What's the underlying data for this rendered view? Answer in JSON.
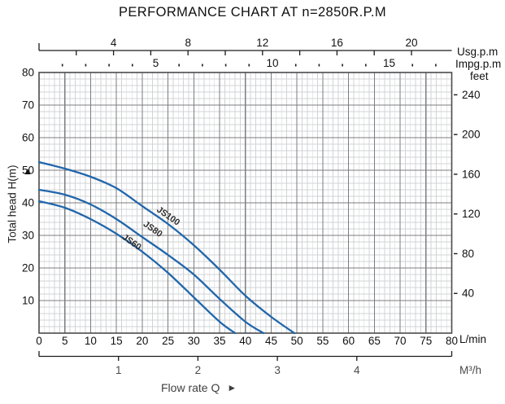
{
  "title": "PERFORMANCE CHART AT n=2850R.P.M",
  "chart_data": {
    "type": "line",
    "title": "PERFORMANCE CHART AT n=2850R.P.M",
    "xlabel": "Flow rate Q",
    "ylabel": "Total head H(m)",
    "x_unit_primary": "L/min",
    "x_units_all": [
      "Usg.p.m",
      "Impg.p.m",
      "L/min",
      "M³/h"
    ],
    "y_units_all": [
      "m",
      "feet"
    ],
    "xlim": [
      0,
      80
    ],
    "ylim": [
      0,
      80
    ],
    "grid": "minor 1 L/min x 2 m, major 5 L/min x 10 m",
    "legend_position": "labels along curves",
    "series": [
      {
        "name": "JS100",
        "x_lmin": [
          0,
          5,
          10,
          15,
          20,
          25,
          30,
          35,
          40,
          45,
          49.5
        ],
        "y_m": [
          52.5,
          50.5,
          48,
          44.5,
          39,
          33.5,
          27,
          19.5,
          11.5,
          5,
          0
        ]
      },
      {
        "name": "JS80",
        "x_lmin": [
          0,
          5,
          10,
          15,
          20,
          25,
          30,
          35,
          40,
          43.5
        ],
        "y_m": [
          44,
          42.5,
          39.5,
          35,
          29.5,
          24,
          18,
          10.5,
          3.5,
          0
        ]
      },
      {
        "name": "JS60",
        "x_lmin": [
          0,
          5,
          10,
          15,
          20,
          25,
          30,
          35,
          38
        ],
        "y_m": [
          40.5,
          38.5,
          35,
          30.5,
          25,
          18.5,
          11,
          3.5,
          0
        ]
      }
    ]
  },
  "axes": {
    "top_usgpm": {
      "unit": "Usg.p.m",
      "tick_labels": [
        4,
        8,
        12,
        16,
        20
      ],
      "minor_ticks": [
        2,
        4,
        6,
        8,
        10,
        12,
        14,
        16,
        18,
        20
      ]
    },
    "top_impgpm": {
      "unit": "Impg.p.m",
      "tick_labels": [
        5,
        10,
        15
      ],
      "minor_max": 17
    },
    "left_head": {
      "label": "Total head H(m)",
      "marker": "▲",
      "tick_labels": [
        80,
        70,
        60,
        50,
        40,
        30,
        20,
        10
      ]
    },
    "right_feet": {
      "unit": "feet",
      "tick_labels": [
        240,
        200,
        160,
        120,
        80,
        40
      ]
    },
    "bottom_lmin": {
      "unit": "L/min",
      "tick_labels": [
        0,
        5,
        10,
        15,
        20,
        25,
        30,
        35,
        40,
        45,
        50,
        55,
        60,
        65,
        70,
        75,
        80
      ]
    },
    "bottom_m3h": {
      "unit": "M³/h",
      "tick_labels": [
        1,
        2,
        3,
        4
      ]
    }
  },
  "footer": {
    "xlabel": "Flow rate Q",
    "arrow": "►"
  },
  "colors": {
    "curve": "#2066ab",
    "grid_minor": "#d2d3d6",
    "grid_major": "#7c7d80",
    "border": "#4b4b4d",
    "axis": "#1a1a1a",
    "text": "#111111",
    "muted_text": "#4a4a4a"
  }
}
